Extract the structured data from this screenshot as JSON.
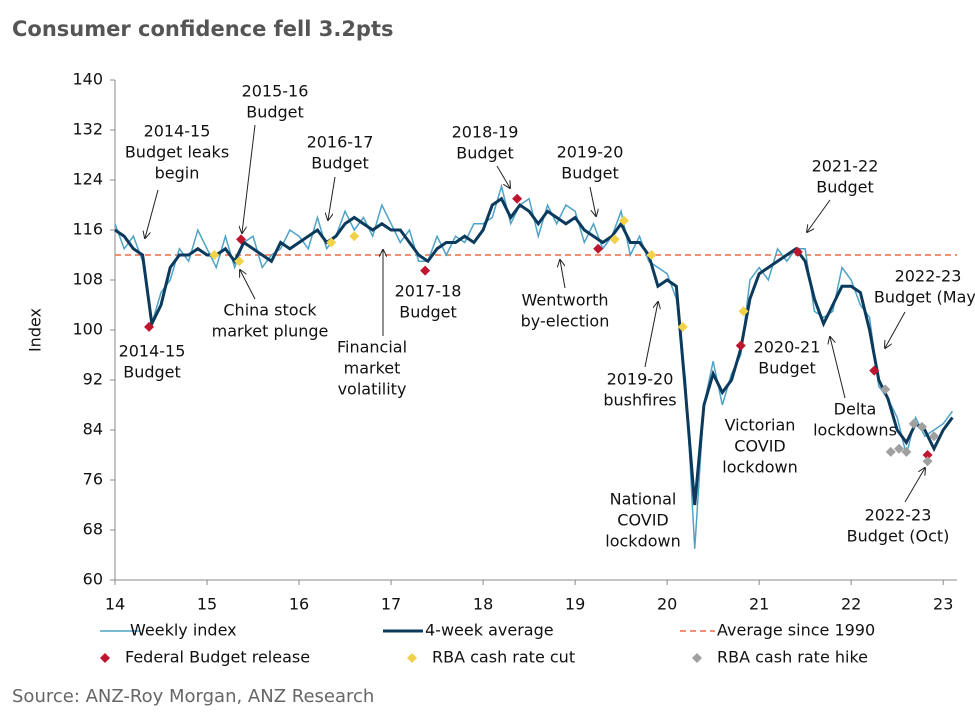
{
  "chart_data": {
    "type": "line",
    "title": "Consumer confidence fell 3.2pts",
    "source": "Source: ANZ-Roy Morgan, ANZ Research",
    "ylabel": "Index",
    "xlim": [
      14,
      23.15
    ],
    "ylim": [
      60,
      140
    ],
    "xticks": [
      14,
      15,
      16,
      17,
      18,
      19,
      20,
      21,
      22,
      23
    ],
    "yticks": [
      60,
      68,
      76,
      84,
      92,
      100,
      108,
      116,
      124,
      132,
      140
    ],
    "x": [
      14,
      14.1,
      14.2,
      14.3,
      14.4,
      14.5,
      14.6,
      14.7,
      14.8,
      14.9,
      15,
      15.1,
      15.2,
      15.3,
      15.4,
      15.5,
      15.6,
      15.7,
      15.8,
      15.9,
      16,
      16.1,
      16.2,
      16.3,
      16.4,
      16.5,
      16.6,
      16.7,
      16.8,
      16.9,
      17,
      17.1,
      17.2,
      17.3,
      17.4,
      17.5,
      17.6,
      17.7,
      17.8,
      17.9,
      18,
      18.1,
      18.2,
      18.3,
      18.4,
      18.5,
      18.6,
      18.7,
      18.8,
      18.9,
      19,
      19.1,
      19.2,
      19.3,
      19.4,
      19.5,
      19.6,
      19.7,
      19.8,
      19.9,
      20,
      20.1,
      20.2,
      20.3,
      20.4,
      20.5,
      20.6,
      20.7,
      20.8,
      20.9,
      21,
      21.1,
      21.2,
      21.3,
      21.4,
      21.5,
      21.6,
      21.7,
      21.8,
      21.9,
      22,
      22.1,
      22.2,
      22.3,
      22.4,
      22.5,
      22.6,
      22.7,
      22.8,
      22.9,
      23,
      23.1
    ],
    "series": [
      {
        "name": "Weekly index",
        "color": "#4fa3c7",
        "values": [
          117,
          113,
          115,
          111,
          101,
          106,
          108,
          113,
          111,
          116,
          113,
          110,
          115,
          110,
          114,
          115,
          110,
          112,
          113,
          116,
          115,
          113,
          118,
          113,
          115,
          119,
          116,
          118,
          115,
          120,
          117,
          114,
          116,
          111,
          111,
          115,
          112,
          115,
          114,
          117,
          117,
          118,
          123,
          117,
          120,
          121,
          115,
          120,
          117,
          120,
          119,
          114,
          117,
          113,
          115,
          119,
          112,
          115,
          111,
          110,
          109,
          105,
          92,
          65,
          88,
          95,
          88,
          93,
          96,
          108,
          110,
          108,
          113,
          111,
          113,
          113,
          103,
          102,
          103,
          110,
          108,
          104,
          102,
          91,
          89,
          86,
          80,
          86,
          83,
          84,
          85,
          87
        ]
      },
      {
        "name": "4-week average",
        "color": "#0b3a5c",
        "values": [
          116,
          115,
          113,
          112,
          101,
          104,
          110,
          112,
          112,
          113,
          112,
          112,
          113,
          111,
          114,
          113,
          112,
          111,
          114,
          113,
          114,
          115,
          116,
          114,
          115,
          117,
          118,
          117,
          116,
          117,
          116,
          116,
          114,
          112,
          111,
          113,
          114,
          114,
          115,
          114,
          116,
          120,
          121,
          118,
          120,
          119,
          117,
          119,
          118,
          117,
          118,
          116,
          115,
          114,
          115,
          117,
          114,
          114,
          112,
          107,
          108,
          107,
          90,
          72,
          88,
          93,
          90,
          92,
          97,
          105,
          109,
          110,
          111,
          112,
          113,
          111,
          105,
          101,
          104,
          107,
          107,
          106,
          100,
          92,
          89,
          84,
          82,
          85,
          84,
          81,
          84,
          86
        ]
      }
    ],
    "reference_lines": [
      {
        "name": "Average since 1990",
        "value": 112,
        "color": "#f08060"
      }
    ],
    "markers": [
      {
        "name": "Federal Budget release",
        "color": "#c0152f",
        "x": [
          14.37,
          15.37,
          17.37,
          18.37,
          19.25,
          20.8,
          21.42,
          22.25,
          22.83
        ],
        "values": [
          100.5,
          114.5,
          109.5,
          121,
          113,
          97.5,
          112.5,
          93.5,
          80
        ]
      },
      {
        "name": "RBA cash rate cut",
        "color": "#f2d24b",
        "x": [
          15.08,
          15.35,
          16.35,
          16.6,
          19.43,
          19.53,
          19.83,
          20.17,
          20.83
        ],
        "values": [
          112,
          111,
          114,
          115,
          114.5,
          117.5,
          112,
          100.5,
          103
        ]
      },
      {
        "name": "RBA cash rate hike",
        "color": "#a0a0a0",
        "x": [
          22.37,
          22.43,
          22.52,
          22.6,
          22.68,
          22.77,
          22.83,
          22.9
        ],
        "values": [
          90.5,
          80.5,
          81,
          80.5,
          85,
          84.5,
          79,
          83
        ]
      }
    ],
    "annotations": [
      [
        "2014-15",
        "Budget leaks",
        "begin"
      ],
      [
        "2015-16",
        "Budget"
      ],
      [
        "2016-17",
        "Budget"
      ],
      [
        "2018-19",
        "Budget"
      ],
      [
        "2019-20",
        "Budget"
      ],
      [
        "2021-22",
        "Budget"
      ],
      [
        "2022-23",
        "Budget (May)"
      ],
      [
        "China stock",
        "market plunge"
      ],
      [
        "Financial",
        "market",
        "volatility"
      ],
      [
        "2017-18",
        "Budget"
      ],
      [
        "Wentworth",
        "by-election"
      ],
      [
        "2014-15",
        "Budget"
      ],
      [
        "2019-20",
        "bushfires"
      ],
      [
        "National",
        "COVID",
        "lockdown"
      ],
      [
        "Victorian",
        "COVID",
        "lockdown"
      ],
      [
        "2020-21",
        "Budget"
      ],
      [
        "Delta",
        "lockdowns"
      ],
      [
        "2022-23",
        "Budget (Oct)"
      ]
    ]
  }
}
